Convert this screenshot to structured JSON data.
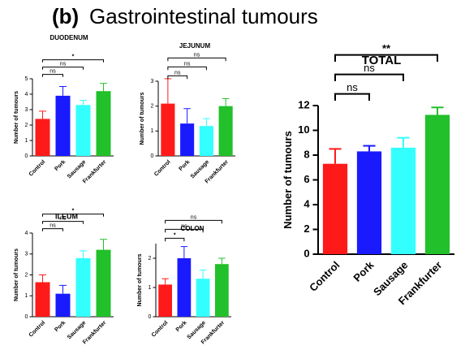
{
  "panel_label": "(b)",
  "title": "Gastrointestinal tumours",
  "chart_data": [
    {
      "type": "bar",
      "title": "DUODENUM",
      "y_label": "Number of tumours",
      "categories": [
        "Control",
        "Pork",
        "Sausage",
        "Frankfurter"
      ],
      "values": [
        2.4,
        3.9,
        3.3,
        4.2
      ],
      "errors": [
        0.5,
        0.6,
        0.3,
        0.5
      ],
      "colors": [
        "#ff1a1a",
        "#1a1aff",
        "#33ffff",
        "#22c02a"
      ],
      "significance": [
        null,
        "ns",
        "ns",
        "*"
      ],
      "ylim": [
        0,
        5
      ],
      "yticks": [
        0,
        1,
        2,
        3,
        4,
        5
      ]
    },
    {
      "type": "bar",
      "title": "JEJUNUM",
      "y_label": "Number of tumours",
      "categories": [
        "Control",
        "Pork",
        "Sausage",
        "Frankfurter"
      ],
      "values": [
        2.1,
        1.3,
        1.2,
        2.0
      ],
      "errors": [
        1.0,
        0.6,
        0.3,
        0.3
      ],
      "colors": [
        "#ff1a1a",
        "#1a1aff",
        "#33ffff",
        "#22c02a"
      ],
      "significance": [
        null,
        "ns",
        "ns",
        "ns"
      ],
      "ylim": [
        0,
        3
      ],
      "yticks": [
        0,
        1,
        2,
        3
      ]
    },
    {
      "type": "bar",
      "title": "ILEUM",
      "y_label": "Number of tumours",
      "categories": [
        "Control",
        "Pork",
        "Sausage",
        "Frankfurter"
      ],
      "values": [
        1.65,
        1.1,
        2.8,
        3.2
      ],
      "errors": [
        0.35,
        0.4,
        0.35,
        0.5
      ],
      "colors": [
        "#ff1a1a",
        "#1a1aff",
        "#33ffff",
        "#22c02a"
      ],
      "significance": [
        null,
        "ns",
        "ns",
        "*"
      ],
      "ylim": [
        0,
        4
      ],
      "yticks": [
        0,
        1,
        2,
        3,
        4
      ]
    },
    {
      "type": "bar",
      "title": "COLON",
      "y_label": "Number of tumours",
      "categories": [
        "Control",
        "Pork",
        "Sausage",
        "Frankfurter"
      ],
      "values": [
        1.1,
        2.0,
        1.3,
        1.8
      ],
      "errors": [
        0.2,
        0.4,
        0.3,
        0.2
      ],
      "colors": [
        "#ff1a1a",
        "#1a1aff",
        "#33ffff",
        "#22c02a"
      ],
      "significance": [
        null,
        "*",
        "ns",
        "ns"
      ],
      "ylim": [
        0,
        2.5
      ],
      "yticks": [
        0,
        1,
        2
      ]
    },
    {
      "type": "bar",
      "title": "TOTAL",
      "y_label": "Number of tumours",
      "categories": [
        "Control",
        "Pork",
        "Sausage",
        "Frankfurter"
      ],
      "values": [
        7.3,
        8.3,
        8.6,
        11.25
      ],
      "errors": [
        1.2,
        0.45,
        0.8,
        0.6
      ],
      "colors": [
        "#ff1a1a",
        "#1a1aff",
        "#33ffff",
        "#22c02a"
      ],
      "significance": [
        null,
        "ns",
        "ns",
        "**"
      ],
      "ylim": [
        0,
        12
      ],
      "yticks": [
        0,
        2,
        4,
        6,
        8,
        10,
        12
      ]
    }
  ]
}
